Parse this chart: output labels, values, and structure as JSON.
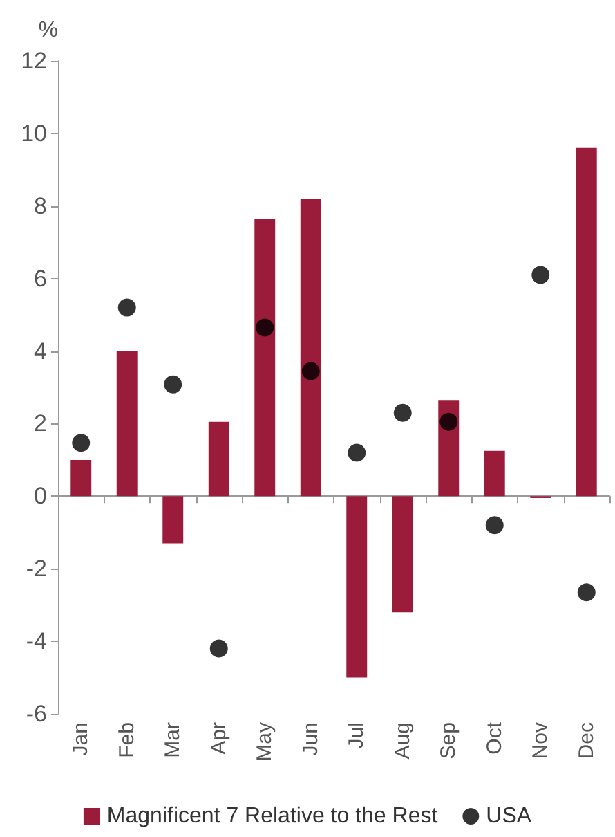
{
  "chart_data": {
    "type": "bar",
    "ylabel": "%",
    "categories": [
      "Jan",
      "Feb",
      "Mar",
      "Apr",
      "May",
      "Jun",
      "Jul",
      "Aug",
      "Sep",
      "Oct",
      "Nov",
      "Dec"
    ],
    "series": [
      {
        "name": "Magnificent 7 Relative to the Rest",
        "color": "#9b1b3b",
        "values": [
          1.0,
          4.0,
          -1.3,
          2.05,
          7.65,
          8.2,
          -5.0,
          -3.2,
          2.65,
          1.25,
          -0.05,
          9.6
        ]
      },
      {
        "name": "USA",
        "type": "scatter",
        "color": "#000000",
        "marker": "circle",
        "values": [
          1.47,
          5.2,
          3.08,
          -4.2,
          4.65,
          3.45,
          1.2,
          2.3,
          2.05,
          -0.8,
          6.1,
          -2.65
        ]
      }
    ],
    "ylim": [
      -6,
      12
    ],
    "yticks": [
      -6,
      -4,
      -2,
      0,
      2,
      4,
      6,
      8,
      10,
      12
    ],
    "legend": "bottom"
  }
}
